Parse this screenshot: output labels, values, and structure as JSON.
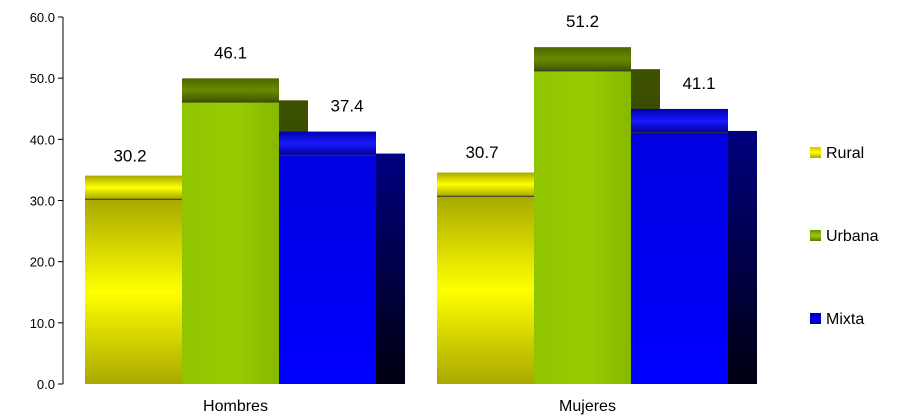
{
  "chart_data": {
    "type": "bar",
    "categories": [
      "Hombres",
      "Mujeres"
    ],
    "series": [
      {
        "name": "Rural",
        "values": [
          30.2,
          30.7
        ],
        "color": "#e6e600"
      },
      {
        "name": "Urbana",
        "values": [
          46.1,
          51.2
        ],
        "color": "#99cc00"
      },
      {
        "name": "Mixta",
        "values": [
          37.4,
          41.1
        ],
        "color": "#0000ee"
      }
    ],
    "value_labels": [
      [
        "30.2",
        "30.7"
      ],
      [
        "46.1",
        "51.2"
      ],
      [
        "37.4",
        "41.1"
      ]
    ],
    "yticks": [
      "0.0",
      "10.0",
      "20.0",
      "30.0",
      "40.0",
      "50.0",
      "60.0"
    ],
    "ylim": [
      0,
      60
    ],
    "title": "",
    "xlabel": "",
    "ylabel": "",
    "grid": false,
    "legend_position": "right",
    "style": "3d-cylinder"
  }
}
